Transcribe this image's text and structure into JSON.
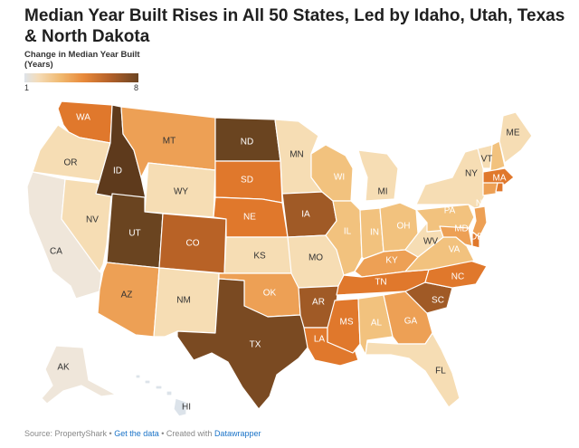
{
  "title": "Median Year Built Rises in All 50 States, Led by Idaho, Utah, Texas & North Dakota",
  "legend": {
    "title": "Change in Median Year Built (Years)",
    "min_label": "1",
    "max_label": "8"
  },
  "palette": {
    "light_gray": "#dce3ea",
    "cream": "#f6ddb4",
    "light_orange": "#f2c27e",
    "orange": "#eda055",
    "dark_orange": "#e0782c",
    "rust": "#b86226",
    "brown": "#7a4a22",
    "dark_brown": "#5e3a1c"
  },
  "states": [
    {
      "code": "WA",
      "color": "#e0782c"
    },
    {
      "code": "OR",
      "color": "#f6ddb4"
    },
    {
      "code": "CA",
      "color": "#efe6da"
    },
    {
      "code": "NV",
      "color": "#f6ddb4"
    },
    {
      "code": "ID",
      "color": "#5e3a1c"
    },
    {
      "code": "MT",
      "color": "#eda055"
    },
    {
      "code": "WY",
      "color": "#f6ddb4"
    },
    {
      "code": "UT",
      "color": "#6a4420"
    },
    {
      "code": "AZ",
      "color": "#eda055"
    },
    {
      "code": "CO",
      "color": "#b86226"
    },
    {
      "code": "NM",
      "color": "#f6ddb4"
    },
    {
      "code": "ND",
      "color": "#6a4420"
    },
    {
      "code": "SD",
      "color": "#e0782c"
    },
    {
      "code": "NE",
      "color": "#e0782c"
    },
    {
      "code": "KS",
      "color": "#f6ddb4"
    },
    {
      "code": "OK",
      "color": "#eda055"
    },
    {
      "code": "TX",
      "color": "#7a4a22"
    },
    {
      "code": "MN",
      "color": "#f6ddb4"
    },
    {
      "code": "IA",
      "color": "#a05a26"
    },
    {
      "code": "MO",
      "color": "#f6ddb4"
    },
    {
      "code": "AR",
      "color": "#a05a26"
    },
    {
      "code": "LA",
      "color": "#e0782c"
    },
    {
      "code": "WI",
      "color": "#f2c27e"
    },
    {
      "code": "IL",
      "color": "#f2c27e"
    },
    {
      "code": "MI",
      "color": "#f6ddb4"
    },
    {
      "code": "IN",
      "color": "#f2c27e"
    },
    {
      "code": "OH",
      "color": "#f2c27e"
    },
    {
      "code": "KY",
      "color": "#eda055"
    },
    {
      "code": "TN",
      "color": "#e0782c"
    },
    {
      "code": "MS",
      "color": "#e0782c"
    },
    {
      "code": "AL",
      "color": "#f2c27e"
    },
    {
      "code": "GA",
      "color": "#eda055"
    },
    {
      "code": "FL",
      "color": "#f6ddb4"
    },
    {
      "code": "SC",
      "color": "#a05a26"
    },
    {
      "code": "NC",
      "color": "#e0782c"
    },
    {
      "code": "VA",
      "color": "#f2c27e"
    },
    {
      "code": "WV",
      "color": "#f6ddb4"
    },
    {
      "code": "PA",
      "color": "#f2c27e"
    },
    {
      "code": "NY",
      "color": "#f6ddb4"
    },
    {
      "code": "VT",
      "color": "#f6ddb4"
    },
    {
      "code": "NH",
      "color": "#f2c27e"
    },
    {
      "code": "ME",
      "color": "#f6ddb4"
    },
    {
      "code": "MA",
      "color": "#e0782c"
    },
    {
      "code": "RI",
      "color": "#e0782c"
    },
    {
      "code": "CT",
      "color": "#eda055"
    },
    {
      "code": "NJ",
      "color": "#eda055"
    },
    {
      "code": "DE",
      "color": "#e0782c"
    },
    {
      "code": "MD",
      "color": "#eda055"
    },
    {
      "code": "AK",
      "color": "#efe6da"
    },
    {
      "code": "HI",
      "color": "#dce3ea"
    }
  ],
  "footer": {
    "source": "Source: PropertyShark",
    "sep1": " • ",
    "get_data": "Get the data",
    "sep2": " • Created with ",
    "datawrapper": "Datawrapper"
  }
}
